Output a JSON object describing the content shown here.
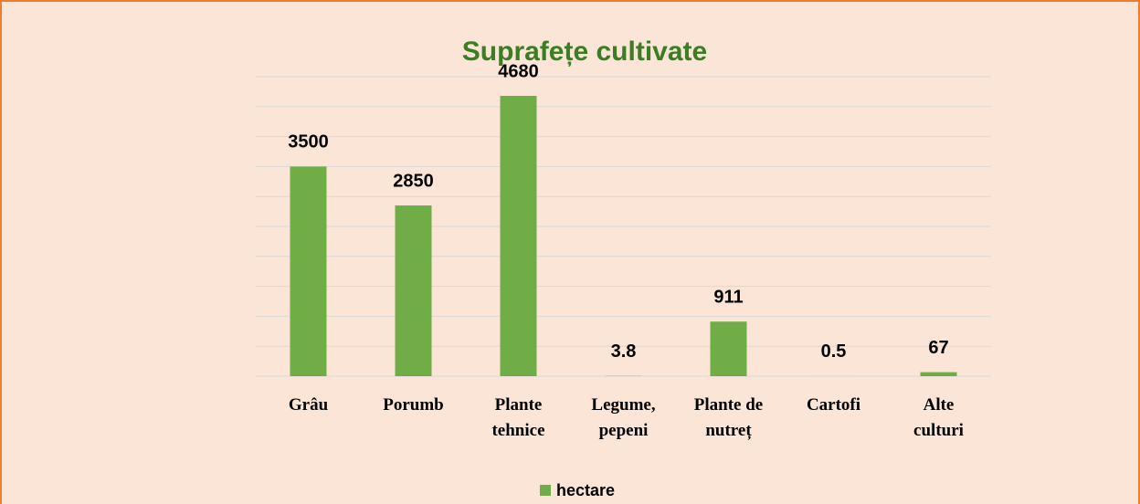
{
  "chart_data": {
    "type": "bar",
    "title": "Suprafețe cultivate",
    "categories": [
      "Grâu",
      "Porumb",
      "Plante\ntehnice",
      "Legume,\npepeni",
      "Plante de\nnutreț",
      "Cartofi",
      "Alte\nculturi"
    ],
    "series": [
      {
        "name": "hectare",
        "color": "#70ad47",
        "values": [
          3500,
          2850,
          4680,
          3.8,
          911,
          0.5,
          67
        ]
      }
    ],
    "ylim": [
      0,
      5000
    ],
    "yticks": [
      0,
      500,
      1000,
      1500,
      2000,
      2500,
      3000,
      3500,
      4000,
      4500,
      5000
    ],
    "grid": true,
    "legend": "bottom"
  }
}
